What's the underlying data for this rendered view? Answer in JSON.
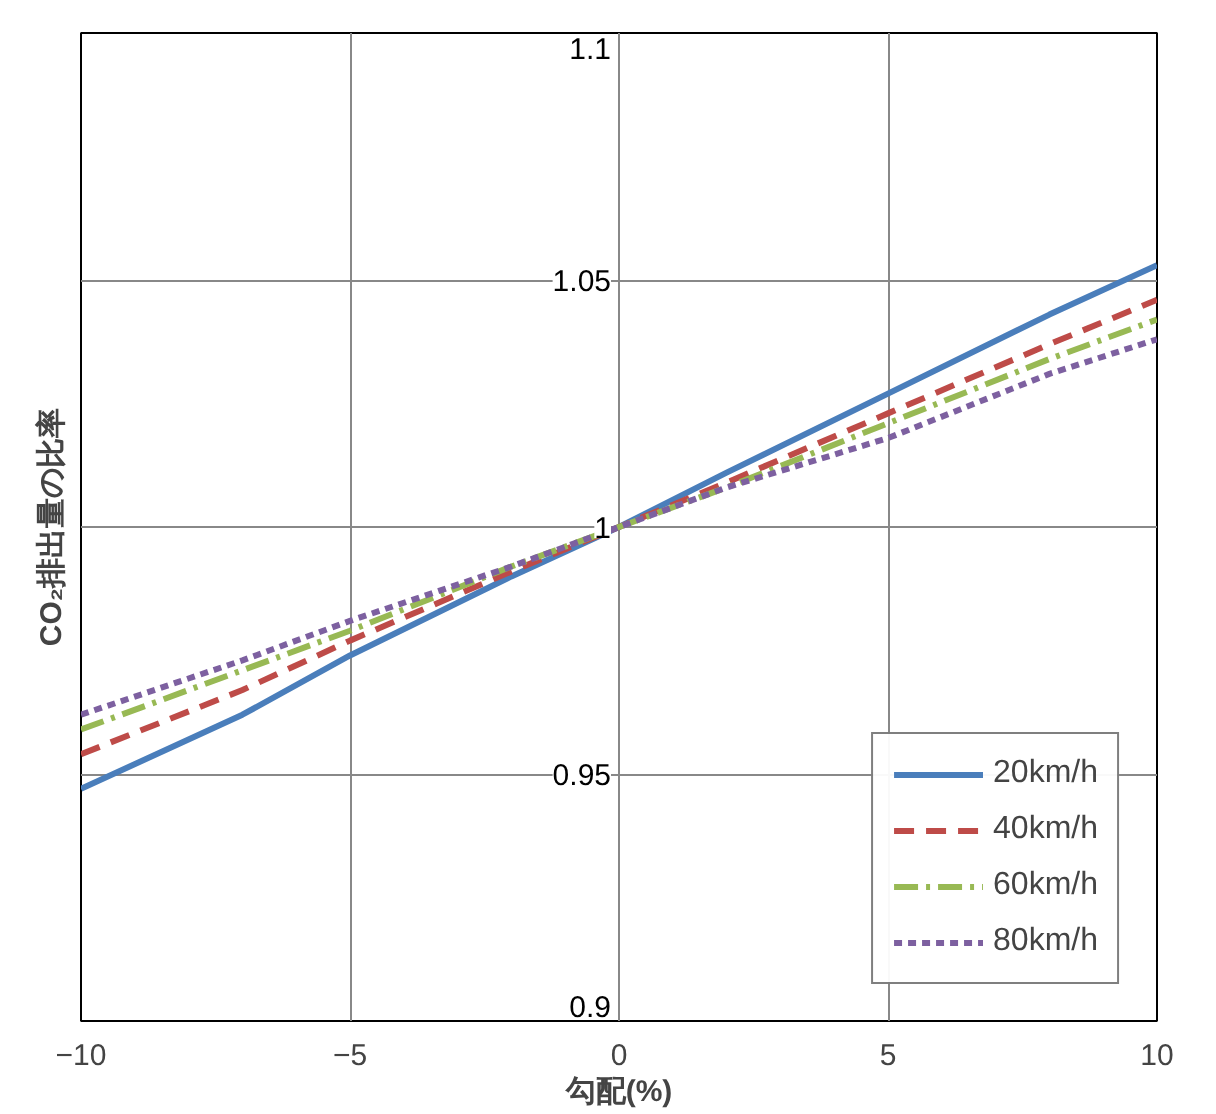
{
  "chart_data": {
    "type": "line",
    "xlabel": "勾配(%)",
    "ylabel": "CO₂排出量の比率",
    "x": [
      -10,
      -7,
      -5,
      -2,
      0,
      2,
      5,
      8,
      10
    ],
    "xlim": [
      -10,
      10
    ],
    "xticks": [
      -10,
      -5,
      0,
      5,
      10
    ],
    "ylim": [
      0.9,
      1.1
    ],
    "yticks": [
      0.9,
      0.95,
      1,
      1.05,
      1.1
    ],
    "grid": true,
    "legend": "bottom right",
    "series": [
      {
        "name": "20km/h",
        "color": "#4a7ebb",
        "line_style": "solid",
        "values": [
          0.947,
          0.962,
          0.974,
          0.99,
          1,
          1.011,
          1.027,
          1.043,
          1.053
        ]
      },
      {
        "name": "40km/h",
        "color": "#be4b48",
        "line_style": "dashed",
        "values": [
          0.954,
          0.967,
          0.977,
          0.991,
          1,
          1.009,
          1.023,
          1.037,
          1.046
        ]
      },
      {
        "name": "60km/h",
        "color": "#98b954",
        "line_style": "dashdot",
        "values": [
          0.959,
          0.971,
          0.979,
          0.992,
          1,
          1.008,
          1.021,
          1.034,
          1.042
        ]
      },
      {
        "name": "80km/h",
        "color": "#7d60a0",
        "line_style": "dotted",
        "values": [
          0.962,
          0.973,
          0.981,
          0.992,
          1,
          1.008,
          1.018,
          1.031,
          1.038
        ]
      }
    ]
  }
}
